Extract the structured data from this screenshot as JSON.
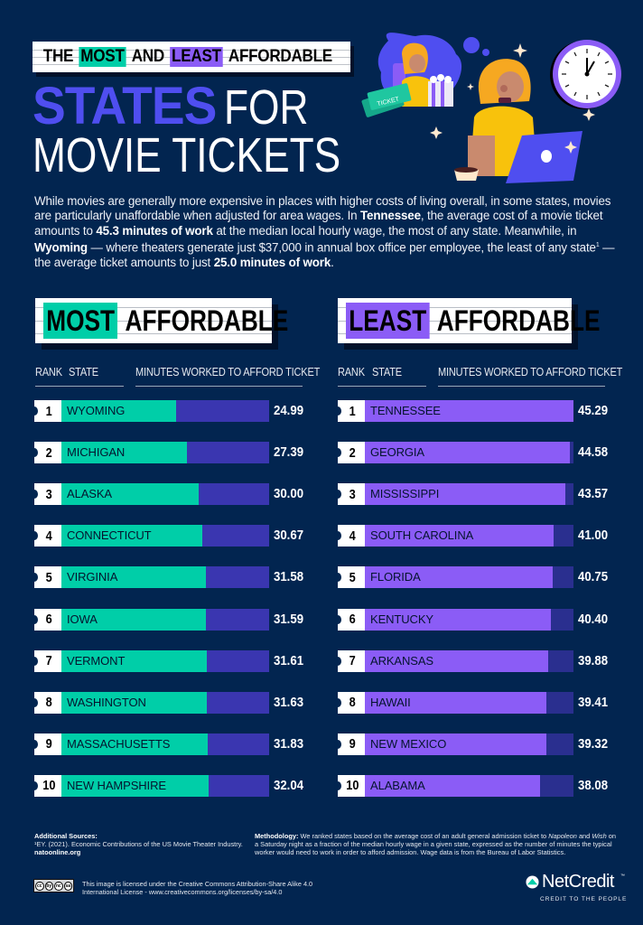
{
  "header": {
    "kicker": [
      "THE",
      "MOST",
      "AND",
      "LEAST",
      "AFFORDABLE"
    ],
    "title_highlight": "STATES",
    "title_rest_line1": "FOR",
    "title_line2": "MOVIE TICKETS"
  },
  "illustration": {
    "ticket_label": "TICKET"
  },
  "intro": {
    "p1": "While movies are generally more expensive in places with higher costs of living overall, in some states, movies are particularly unaffordable when adjusted for area wages. In ",
    "b1": "Tennessee",
    "p2": ", the average cost of a movie ticket amounts to ",
    "b2": "45.3 minutes of work",
    "p3": " at the median local hourly wage, the most of any state. Meanwhile, in ",
    "b3": "Wyoming",
    "p4": " — where theaters generate just $37,000 in annual box office per employee, the least of any state",
    "sup": "1",
    "p5": " — the average ticket amounts to just ",
    "b4": "25.0 minutes of work",
    "p6": "."
  },
  "panels": {
    "left": {
      "title_highlight": "MOST",
      "title_rest": "AFFORDABLE",
      "col_rank": "RANK",
      "col_state": "STATE",
      "col_minutes": "MINUTES WORKED TO AFFORD TICKET",
      "fill_color": "#00cea8",
      "track_color": "#3a36b0"
    },
    "right": {
      "title_highlight": "LEAST",
      "title_rest": "AFFORDABLE",
      "col_rank": "RANK",
      "col_state": "STATE",
      "col_minutes": "MINUTES WORKED TO AFFORD TICKET",
      "fill_color": "#8b5cf6",
      "track_color": "#2a2f8f"
    }
  },
  "chart_data": [
    {
      "type": "bar",
      "title": "MOST AFFORDABLE",
      "orientation": "horizontal",
      "xlabel": "MINUTES WORKED TO AFFORD TICKET",
      "ylabel": "STATE",
      "categories": [
        "WYOMING",
        "MICHIGAN",
        "ALASKA",
        "CONNECTICUT",
        "VIRGINIA",
        "IOWA",
        "VERMONT",
        "WASHINGTON",
        "MASSACHUSETTS",
        "NEW HAMPSHIRE"
      ],
      "ranks": [
        1,
        2,
        3,
        4,
        5,
        6,
        7,
        8,
        9,
        10
      ],
      "values": [
        24.99,
        27.39,
        30.0,
        30.67,
        31.58,
        31.59,
        31.61,
        31.63,
        31.83,
        32.04
      ],
      "labels": [
        "24.99",
        "27.39",
        "30.00",
        "30.67",
        "31.58",
        "31.59",
        "31.61",
        "31.63",
        "31.83",
        "32.04"
      ],
      "xlim": [
        0,
        45.29
      ],
      "grid": false,
      "color": "#00cea8"
    },
    {
      "type": "bar",
      "title": "LEAST AFFORDABLE",
      "orientation": "horizontal",
      "xlabel": "MINUTES WORKED TO AFFORD TICKET",
      "ylabel": "STATE",
      "categories": [
        "TENNESSEE",
        "GEORGIA",
        "MISSISSIPPI",
        "SOUTH CAROLINA",
        "FLORIDA",
        "KENTUCKY",
        "ARKANSAS",
        "HAWAII",
        "NEW MEXICO",
        "ALABAMA"
      ],
      "ranks": [
        1,
        2,
        3,
        4,
        5,
        6,
        7,
        8,
        9,
        10
      ],
      "values": [
        45.29,
        44.58,
        43.57,
        41.0,
        40.75,
        40.4,
        39.88,
        39.41,
        39.32,
        38.08
      ],
      "labels": [
        "45.29",
        "44.58",
        "43.57",
        "41.00",
        "40.75",
        "40.40",
        "39.88",
        "39.41",
        "39.32",
        "38.08"
      ],
      "xlim": [
        0,
        45.29
      ],
      "grid": false,
      "color": "#8b5cf6"
    }
  ],
  "footer": {
    "sources_label": "Additional Sources:",
    "sources_text": "¹EY. (2021). Economic Contributions of the US Movie Theater Industry.",
    "sources_link": "natoonline.org",
    "methodology_label": "Methodology:",
    "methodology_p1": " We ranked states based on the average cost of an adult general admission ticket to ",
    "methodology_i1": "Napoleon",
    "methodology_p2": " and ",
    "methodology_i2": "Wish",
    "methodology_p3": " on a Saturday night as a fraction of the median hourly wage in a given state, expressed as the number of minutes the typical worker would need to work in order to afford admission. Wage data is from the Bureau of Labor Statistics.",
    "license_text": "This image is licensed under the Creative Commons Attribution-Share Alike 4.0 International License - www.creativecommons.org/licenses/by-sa/4.0",
    "cc_icons": [
      "cc",
      "by",
      "nc",
      "sa"
    ],
    "logo_name": "NetCredit",
    "logo_tm": "™",
    "logo_tagline": "CREDIT TO THE PEOPLE"
  },
  "colors": {
    "background": "#022550",
    "teal": "#00cea8",
    "purple": "#8b5cf6",
    "title_blue": "#4f4ef0"
  }
}
